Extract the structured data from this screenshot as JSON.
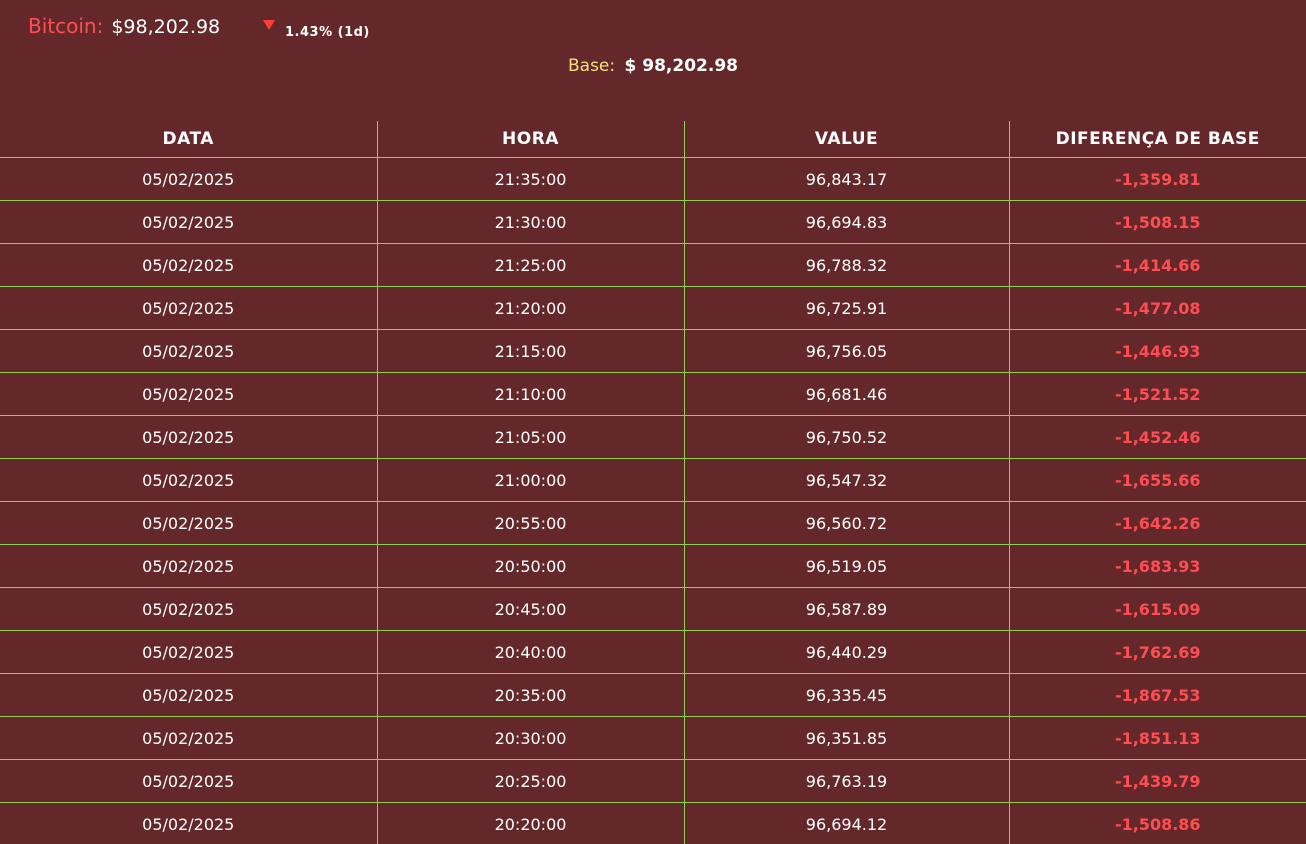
{
  "ticker": {
    "name": "Bitcoin:",
    "price": "$98,202.98",
    "change": "1.43% (1d)",
    "direction_icon": "triangle-down-icon",
    "colors": {
      "name": "#ff4d52",
      "down": "#ff3b3b"
    }
  },
  "base": {
    "label": "Base:",
    "value": "$ 98,202.98"
  },
  "table": {
    "headers": [
      "DATA",
      "HORA",
      "VALUE",
      "DIFERENÇA DE BASE"
    ],
    "rows": [
      [
        "05/02/2025",
        "21:35:00",
        "96,843.17",
        "-1,359.81"
      ],
      [
        "05/02/2025",
        "21:30:00",
        "96,694.83",
        "-1,508.15"
      ],
      [
        "05/02/2025",
        "21:25:00",
        "96,788.32",
        "-1,414.66"
      ],
      [
        "05/02/2025",
        "21:20:00",
        "96,725.91",
        "-1,477.08"
      ],
      [
        "05/02/2025",
        "21:15:00",
        "96,756.05",
        "-1,446.93"
      ],
      [
        "05/02/2025",
        "21:10:00",
        "96,681.46",
        "-1,521.52"
      ],
      [
        "05/02/2025",
        "21:05:00",
        "96,750.52",
        "-1,452.46"
      ],
      [
        "05/02/2025",
        "21:00:00",
        "96,547.32",
        "-1,655.66"
      ],
      [
        "05/02/2025",
        "20:55:00",
        "96,560.72",
        "-1,642.26"
      ],
      [
        "05/02/2025",
        "20:50:00",
        "96,519.05",
        "-1,683.93"
      ],
      [
        "05/02/2025",
        "20:45:00",
        "96,587.89",
        "-1,615.09"
      ],
      [
        "05/02/2025",
        "20:40:00",
        "96,440.29",
        "-1,762.69"
      ],
      [
        "05/02/2025",
        "20:35:00",
        "96,335.45",
        "-1,867.53"
      ],
      [
        "05/02/2025",
        "20:30:00",
        "96,351.85",
        "-1,851.13"
      ],
      [
        "05/02/2025",
        "20:25:00",
        "96,763.19",
        "-1,439.79"
      ],
      [
        "05/02/2025",
        "20:20:00",
        "96,694.12",
        "-1,508.86"
      ]
    ],
    "colors": {
      "grid": "#8ed14f",
      "negative": "#ff4d52",
      "background": "#65282a"
    }
  }
}
